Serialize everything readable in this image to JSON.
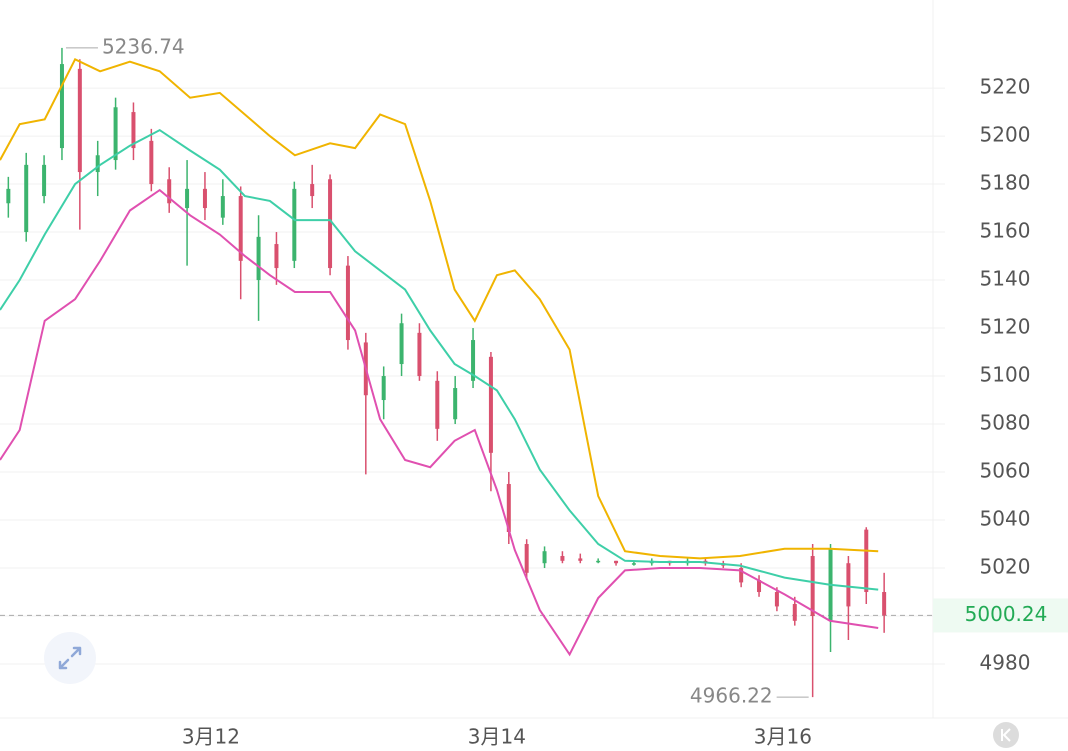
{
  "chart_data": {
    "type": "candlestick",
    "xlim": [
      -35.4,
      121.2
    ],
    "xticks": [
      {
        "value": 0,
        "label": "3月12"
      },
      {
        "value": 48,
        "label": "3月14"
      },
      {
        "value": 96,
        "label": "3月16"
      }
    ],
    "ylim": [
      4957.5,
      5256.7
    ],
    "yticks": [
      4980,
      5000,
      5020,
      5040,
      5060,
      5080,
      5100,
      5120,
      5140,
      5160,
      5180,
      5200,
      5220
    ],
    "grid": true,
    "up_color": "#3cb46e",
    "down_color": "#d9506e",
    "candles": {
      "x": [
        -34,
        -31,
        -28,
        -25,
        -22,
        -19,
        -16,
        -13,
        -10,
        -7,
        -4,
        -1,
        2,
        5,
        8,
        11,
        14,
        17,
        20,
        23,
        26,
        29,
        32,
        35,
        38,
        41,
        44,
        47,
        50,
        53,
        56,
        59,
        62,
        65,
        68,
        71,
        74,
        77,
        80,
        83,
        86,
        89,
        92,
        95,
        98,
        101,
        104,
        107,
        110,
        113
      ],
      "open": [
        5172,
        5160,
        5175,
        5195,
        5228,
        5185,
        5190,
        5210,
        5198,
        5182,
        5170,
        5178,
        5166,
        5175,
        5140,
        5155,
        5148,
        5180,
        5182,
        5146,
        5114,
        5090,
        5105,
        5118,
        5098,
        5082,
        5098,
        5108,
        5055,
        5030,
        5022,
        5025,
        5024,
        5023,
        5023,
        5022,
        5022,
        5023,
        5022,
        5023,
        5022,
        5020,
        5015,
        5010,
        5005,
        5025,
        4998,
        5022,
        5036,
        5010
      ],
      "close": [
        5178,
        5188,
        5188,
        5230,
        5185,
        5192,
        5212,
        5195,
        5180,
        5172,
        5178,
        5170,
        5175,
        5148,
        5158,
        5145,
        5178,
        5175,
        5145,
        5115,
        5092,
        5100,
        5122,
        5100,
        5078,
        5095,
        5115,
        5068,
        5035,
        5018,
        5027,
        5023,
        5023,
        5023,
        5022,
        5022,
        5023,
        5022,
        5023,
        5022,
        5021,
        5014,
        5010,
        5004,
        4998,
        5000,
        5028,
        5004,
        5010,
        5000.24
      ],
      "high": [
        5183,
        5193,
        5192,
        5236.74,
        5232,
        5198,
        5216,
        5214,
        5203,
        5187,
        5190,
        5185,
        5182,
        5179,
        5167,
        5160,
        5181,
        5188,
        5184,
        5150,
        5118,
        5104,
        5126,
        5122,
        5102,
        5100,
        5120,
        5110,
        5060,
        5032,
        5029,
        5027,
        5026,
        5024,
        5023,
        5023,
        5024,
        5023,
        5024,
        5024,
        5023,
        5022,
        5017,
        5012,
        5008,
        5030,
        5030,
        5025,
        5037,
        5018
      ],
      "low": [
        5166,
        5156,
        5172,
        5190,
        5161,
        5175,
        5186,
        5190,
        5177,
        5168,
        5146,
        5165,
        5163,
        5132,
        5123,
        5138,
        5145,
        5170,
        5142,
        5111,
        5059,
        5082,
        5100,
        5098,
        5073,
        5080,
        5095,
        5052,
        5030,
        5015,
        5020,
        5022,
        5022,
        5022,
        5021,
        5021,
        5021,
        5021,
        5021,
        5021,
        5020,
        5012,
        5008,
        5002,
        4996,
        4966.22,
        4985,
        4990,
        5005,
        4993
      ]
    },
    "bands": {
      "x": [
        -35.4,
        -32.1,
        -27.9,
        -22.8,
        -18.6,
        -13.6,
        -8.6,
        -3.5,
        1.5,
        5.7,
        9.9,
        14.1,
        20.0,
        24.2,
        28.4,
        32.6,
        36.8,
        40.9,
        44.3,
        48.0,
        51.0,
        55.2,
        60.2,
        65.0,
        69.5,
        75.4,
        82.1,
        88.8,
        96.3,
        103.9,
        112.0
      ],
      "upper": {
        "color": "#f0b400",
        "values": [
          5190,
          5205,
          5207,
          5232,
          5227,
          5231,
          5227,
          5216,
          5218,
          5209,
          5200,
          5192,
          5197,
          5195,
          5209,
          5205,
          5173,
          5136,
          5123,
          5142,
          5144,
          5132,
          5111,
          5050,
          5027,
          5025,
          5024,
          5025,
          5028,
          5028,
          5027
        ]
      },
      "middle": {
        "color": "#3ecfa8",
        "values": [
          5127.5,
          5140,
          5159,
          5180,
          5188,
          5196,
          5202.5,
          5194,
          5186,
          5175,
          5173,
          5165,
          5165,
          5152,
          5144,
          5136,
          5119,
          5105,
          5100,
          5094,
          5082,
          5061,
          5044,
          5030,
          5023,
          5022.5,
          5022.5,
          5021,
          5016,
          5013,
          5011
        ]
      },
      "lower": {
        "color": "#e050b0",
        "values": [
          5065,
          5077.5,
          5123,
          5132,
          5148,
          5169,
          5177.5,
          5167,
          5159,
          5150,
          5142,
          5135,
          5135,
          5119,
          5082,
          5065,
          5062,
          5073,
          5077.5,
          5052.5,
          5027.5,
          5002.5,
          4984,
          5007.5,
          5019,
          5020,
          5020,
          5019,
          5009,
          4998,
          4995
        ]
      }
    }
  }
}
